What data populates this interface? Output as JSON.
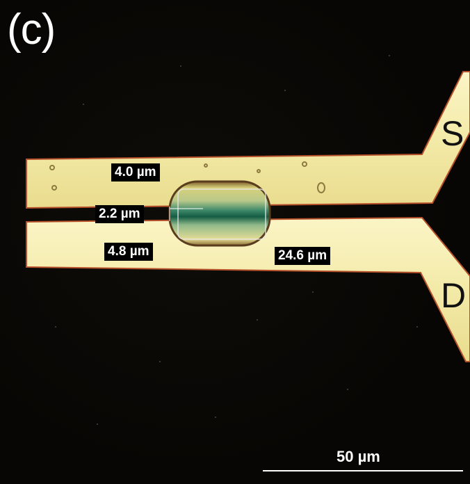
{
  "figure": {
    "panel_label": "(c)",
    "electrode_source_label": "S",
    "electrode_drain_label": "D",
    "measurements": {
      "top_finger_width": "4.0 µm",
      "gap_width": "2.2 µm",
      "bottom_finger_width": "4.8 µm",
      "crystal_length": "24.6 µm"
    },
    "scale_bar_label": "50 µm"
  },
  "colors": {
    "background": "#070604",
    "electrode_gold": "#f5edb0",
    "electrode_edge": "#b5502a",
    "crystal_green": "#1c7a5c",
    "label_background": "#000000",
    "label_text": "#ffffff"
  }
}
